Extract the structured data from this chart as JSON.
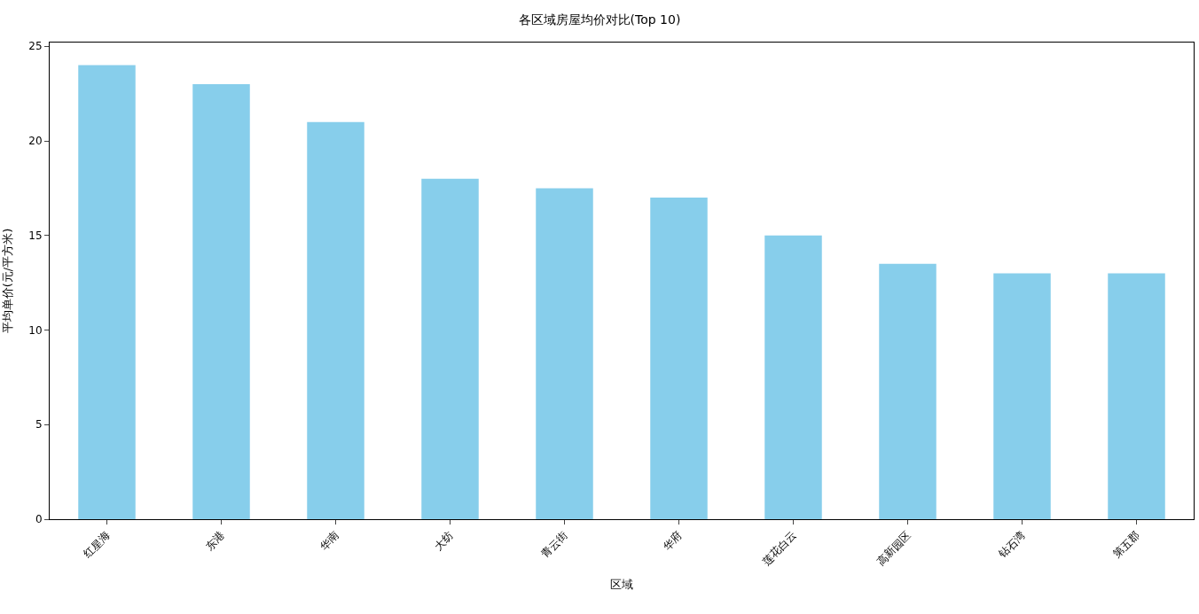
{
  "chart_data": {
    "type": "bar",
    "title": "各区域房屋均价对比(Top 10)",
    "xlabel": "区域",
    "ylabel": "平均单价(元/平方米)",
    "categories": [
      "红星海",
      "东港",
      "华南",
      "大纺",
      "青云街",
      "华府",
      "莲花白云",
      "高新园区",
      "钻石湾",
      "第五郡"
    ],
    "values": [
      24,
      23,
      21,
      18,
      17.5,
      17,
      15,
      13.5,
      13,
      13
    ],
    "color": "#87ceeb",
    "ylim": [
      0,
      25.2
    ],
    "yticks": [
      0,
      5,
      10,
      15,
      20,
      25
    ]
  }
}
